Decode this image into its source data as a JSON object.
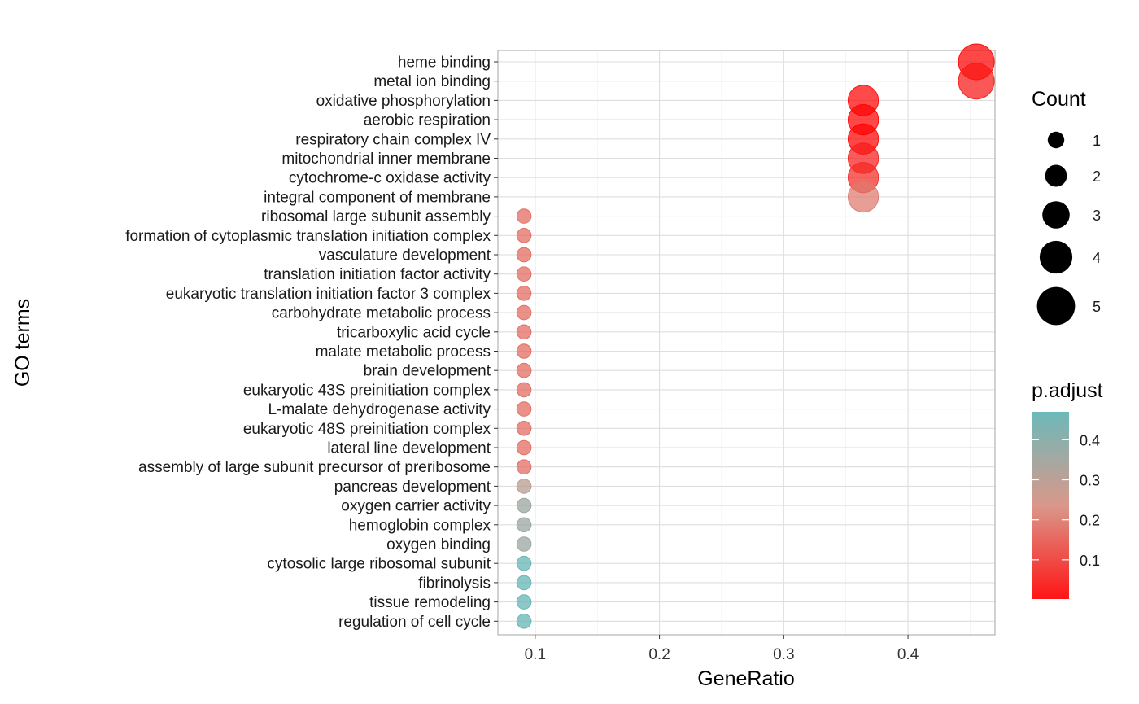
{
  "chart_data": {
    "type": "scatter",
    "xlabel": "GeneRatio",
    "ylabel": "GO terms",
    "xlim": [
      0.07,
      0.47
    ],
    "x_ticks": [
      0.1,
      0.2,
      0.3,
      0.4
    ],
    "x_tick_labels": [
      "0.1",
      "0.2",
      "0.3",
      "0.4"
    ],
    "grid": true,
    "points": [
      {
        "term": "heme binding",
        "gene_ratio": 0.455,
        "count": 5,
        "p_adjust": 0.005
      },
      {
        "term": "metal ion binding",
        "gene_ratio": 0.455,
        "count": 5,
        "p_adjust": 0.04
      },
      {
        "term": "oxidative phosphorylation",
        "gene_ratio": 0.364,
        "count": 4,
        "p_adjust": 0.01
      },
      {
        "term": "aerobic respiration",
        "gene_ratio": 0.364,
        "count": 4,
        "p_adjust": 0.005
      },
      {
        "term": "respiratory chain complex IV",
        "gene_ratio": 0.364,
        "count": 4,
        "p_adjust": 0.002
      },
      {
        "term": "mitochondrial inner membrane",
        "gene_ratio": 0.364,
        "count": 4,
        "p_adjust": 0.05
      },
      {
        "term": "cytochrome-c oxidase activity",
        "gene_ratio": 0.364,
        "count": 4,
        "p_adjust": 0.07
      },
      {
        "term": "integral component of membrane",
        "gene_ratio": 0.364,
        "count": 4,
        "p_adjust": 0.2
      },
      {
        "term": "ribosomal large subunit assembly",
        "gene_ratio": 0.091,
        "count": 1,
        "p_adjust": 0.17
      },
      {
        "term": "formation of cytoplasmic translation initiation complex",
        "gene_ratio": 0.091,
        "count": 1,
        "p_adjust": 0.17
      },
      {
        "term": "vasculature development",
        "gene_ratio": 0.091,
        "count": 1,
        "p_adjust": 0.17
      },
      {
        "term": "translation initiation factor activity",
        "gene_ratio": 0.091,
        "count": 1,
        "p_adjust": 0.17
      },
      {
        "term": "eukaryotic translation initiation factor 3 complex",
        "gene_ratio": 0.091,
        "count": 1,
        "p_adjust": 0.17
      },
      {
        "term": "carbohydrate metabolic process",
        "gene_ratio": 0.091,
        "count": 1,
        "p_adjust": 0.17
      },
      {
        "term": "tricarboxylic acid cycle",
        "gene_ratio": 0.091,
        "count": 1,
        "p_adjust": 0.17
      },
      {
        "term": "malate metabolic process",
        "gene_ratio": 0.091,
        "count": 1,
        "p_adjust": 0.17
      },
      {
        "term": "brain development",
        "gene_ratio": 0.091,
        "count": 1,
        "p_adjust": 0.17
      },
      {
        "term": "eukaryotic 43S preinitiation complex",
        "gene_ratio": 0.091,
        "count": 1,
        "p_adjust": 0.17
      },
      {
        "term": "L-malate dehydrogenase activity",
        "gene_ratio": 0.091,
        "count": 1,
        "p_adjust": 0.17
      },
      {
        "term": "eukaryotic 48S preinitiation complex",
        "gene_ratio": 0.091,
        "count": 1,
        "p_adjust": 0.17
      },
      {
        "term": "lateral line development",
        "gene_ratio": 0.091,
        "count": 1,
        "p_adjust": 0.17
      },
      {
        "term": "assembly of large subunit precursor of preribosome",
        "gene_ratio": 0.091,
        "count": 1,
        "p_adjust": 0.17
      },
      {
        "term": "pancreas development",
        "gene_ratio": 0.091,
        "count": 1,
        "p_adjust": 0.3
      },
      {
        "term": "oxygen carrier activity",
        "gene_ratio": 0.091,
        "count": 1,
        "p_adjust": 0.36
      },
      {
        "term": "hemoglobin complex",
        "gene_ratio": 0.091,
        "count": 1,
        "p_adjust": 0.36
      },
      {
        "term": "oxygen binding",
        "gene_ratio": 0.091,
        "count": 1,
        "p_adjust": 0.36
      },
      {
        "term": "cytosolic large ribosomal subunit",
        "gene_ratio": 0.091,
        "count": 1,
        "p_adjust": 0.47
      },
      {
        "term": "fibrinolysis",
        "gene_ratio": 0.091,
        "count": 1,
        "p_adjust": 0.47
      },
      {
        "term": "tissue remodeling",
        "gene_ratio": 0.091,
        "count": 1,
        "p_adjust": 0.47
      },
      {
        "term": "regulation of cell cycle",
        "gene_ratio": 0.091,
        "count": 1,
        "p_adjust": 0.47
      }
    ],
    "size_legend": {
      "title": "Count",
      "values": [
        1,
        2,
        3,
        4,
        5
      ]
    },
    "color_legend": {
      "title": "p.adjust",
      "min": 0.002,
      "max": 0.47,
      "ticks": [
        0.1,
        0.2,
        0.3,
        0.4
      ],
      "tick_labels": [
        "0.1",
        "0.2",
        "0.3",
        "0.4"
      ],
      "low_color": "#ff0000",
      "high_color": "#5fb3b3"
    },
    "legend_position": "right"
  }
}
